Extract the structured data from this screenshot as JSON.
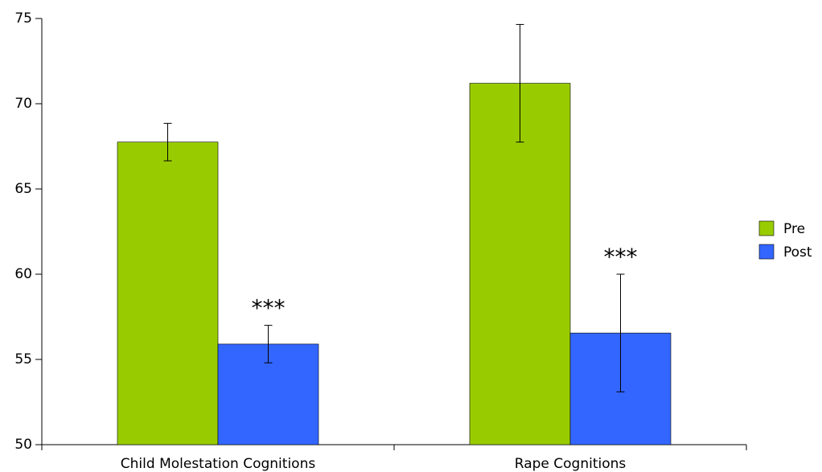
{
  "chart_data": {
    "type": "bar",
    "categories": [
      "Child Molestation Cognitions",
      "Rape Cognitions"
    ],
    "series": [
      {
        "name": "Pre",
        "color": "#99cc00",
        "values": [
          67.75,
          71.2
        ],
        "errors": [
          1.1,
          3.45
        ]
      },
      {
        "name": "Post",
        "color": "#3366ff",
        "values": [
          55.9,
          56.55
        ],
        "errors": [
          1.1,
          3.45
        ],
        "annotations": [
          "***",
          "***"
        ]
      }
    ],
    "ylim": [
      50,
      75
    ],
    "yticks": [
      50,
      55,
      60,
      65,
      70,
      75
    ],
    "grid": false,
    "legend": "right"
  }
}
